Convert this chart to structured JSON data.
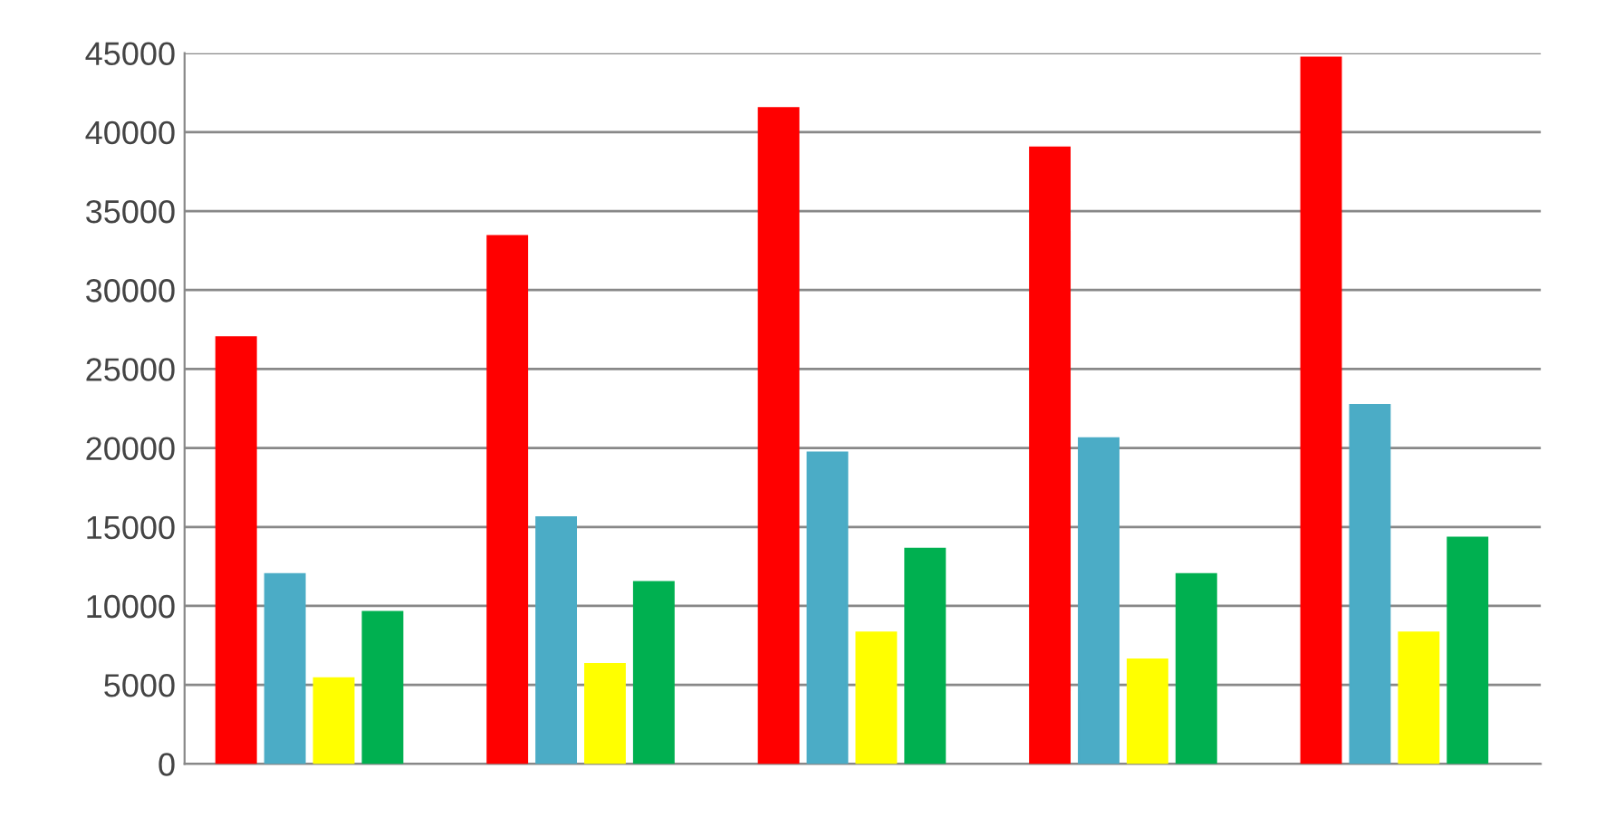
{
  "chart_data": {
    "type": "bar",
    "categories": [
      null,
      null,
      null,
      null,
      null
    ],
    "series": [
      {
        "color": "#ff0000",
        "values": [
          27000,
          33400,
          41500,
          39000,
          44700
        ]
      },
      {
        "color": "#4bacc6",
        "values": [
          12000,
          15600,
          19700,
          20600,
          22700
        ]
      },
      {
        "color": "#ffff00",
        "values": [
          5400,
          6300,
          8300,
          6600,
          8300
        ]
      },
      {
        "color": "#00b050",
        "values": [
          9600,
          11500,
          13600,
          12000,
          14300
        ]
      }
    ],
    "ylim": [
      0,
      45000
    ],
    "yticks": [
      0,
      5000,
      10000,
      15000,
      20000,
      25000,
      30000,
      35000,
      40000,
      45000
    ],
    "grid": "y",
    "tick_labels": "y"
  }
}
